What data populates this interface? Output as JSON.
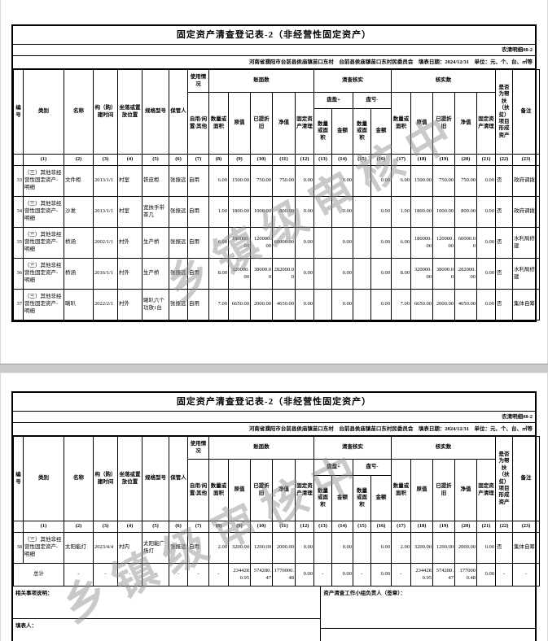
{
  "page": {
    "title": "固定资产清查登记表-2（非经营性固定资产）",
    "form_code": "农清明细08-2",
    "info_line": "河南省濮阳市台前县侯庙镇苗口东村　台前县侯庙镇苗口东村民委员会　填表日期：2024/12/31　单位：元、个、台、㎡等",
    "watermark": "乡镇级审核中"
  },
  "headers": {
    "no": "编号",
    "category": "类别",
    "name": "名称",
    "build_time": "构（购）建时间",
    "location": "坐落或置放位置",
    "model": "规格型号",
    "keeper": "保管人",
    "usage": "使用情况",
    "usage_leaf": "自用/闲置/其他",
    "book": "账面数",
    "check": "清查核实",
    "verify": "核实数",
    "qty": "数量或面积",
    "orig": "原值",
    "depr": "已提折旧",
    "net": "净值",
    "cleanup": "固定资产清理",
    "surplus": "盘盈+",
    "deficit": "盘亏-",
    "amount": "金额",
    "aid": "是否为帮扶（扶贫）项目形成资产",
    "remark": "备注",
    "num_rows": [
      {
        "cls": "nums",
        "cells": [
          "",
          "(1)",
          "(2)",
          "(3)",
          "(4)",
          "(5)",
          "(6)",
          "(7)",
          "(8)",
          "(9)",
          "(10)",
          "(11)",
          "(12)",
          "(13)",
          "(14)",
          "(15)",
          "(16)",
          "(17)",
          "(18)",
          "(19)",
          "(20)",
          "(21)",
          "(22)",
          "(23)"
        ]
      }
    ]
  },
  "table1": {
    "rows": [
      [
        "33",
        "（三）其他非经营性固定资产-明细",
        "文件柜",
        "2013/1/1",
        "村室",
        "铁皮柜",
        "张振远",
        "自用",
        "6.00",
        "1500.00",
        "750.00",
        "750.00",
        "0.00",
        "",
        "0.00",
        "",
        "0.00",
        "6.00",
        "1500.00",
        "750.00",
        "750.00",
        "0.00",
        "否",
        "政府调拨"
      ],
      [
        "34",
        "（三）其他非经营性固定资产-明细",
        "沙发",
        "2013/1/1",
        "村室",
        "宽扶手带茶几",
        "张振远",
        "自用",
        "1.00",
        "1800.00",
        "1000.00",
        "800.00",
        "0.00",
        "",
        "0.00",
        "",
        "0.00",
        "1.00",
        "1800.00",
        "1000.00",
        "800.00",
        "0.00",
        "否",
        "政府调拨"
      ],
      [
        "35",
        "（三）其他非经营性固定资产-明细",
        "桥涵",
        "2002/1/1",
        "村外",
        "生产桥",
        "张振远",
        "自用",
        "6.00",
        "180000.00",
        "120000.00",
        "60000.00",
        "0.00",
        "",
        "0.00",
        "",
        "0.00",
        "6.00",
        "180000.00",
        "120000.00",
        "60000.00",
        "0.00",
        "否",
        "水利局修建"
      ],
      [
        "36",
        "（三）其他非经营性固定资产-明细",
        "桥涵",
        "2016/1/1",
        "村外",
        "生产桥",
        "张振远",
        "自用",
        "8.00",
        "320000.00",
        "38000.00",
        "282000.00",
        "0.00",
        "",
        "0.00",
        "",
        "0.00",
        "8.00",
        "320000.00",
        "38000.00",
        "282000.00",
        "0.00",
        "否",
        "水利局修建"
      ],
      [
        "37",
        "（三）其他非经营性固定资产-明细",
        "喇叭",
        "2022/2/1",
        "村外",
        "喇叭六个功放1台",
        "张振远",
        "自用",
        "7.00",
        "6650.00",
        "2000.00",
        "4650.00",
        "0.00",
        "",
        "0.00",
        "",
        "0.00",
        "7.00",
        "6650.00",
        "2000.00",
        "4650.00",
        "0.00",
        "否",
        "集体自筹"
      ]
    ]
  },
  "table2": {
    "rows": [
      [
        "38",
        "（三）其他非经营性固定资产-明细",
        "太阳能灯",
        "2023/4/4",
        "村内",
        "太阳能广场灯",
        "张振远",
        "自用",
        "2.00",
        "3200.00",
        "1200.00",
        "2000.00",
        "0.00",
        "",
        "0.00",
        "",
        "0.00",
        "2.00",
        "3200.00",
        "1200.00",
        "2000.00",
        "0.00",
        "否",
        "集体自筹"
      ],
      {
        "cls": "total",
        "cells": [
          {
            "t": "总计",
            "cs": 2,
            "al": "c"
          },
          "-",
          "-",
          "-",
          "-",
          "-",
          "-",
          "-",
          "2344280.95",
          "574280.47",
          "1770000.48",
          "0.00",
          "-",
          "0.00",
          "-",
          "0.00",
          "-",
          "2344280.95",
          "574280.47",
          "1770000.48",
          "0.00",
          "-",
          "-"
        ]
      }
    ],
    "footer": {
      "notes": "相关事项说明：",
      "preparer": "填表人：",
      "leader": "资产清查工作小组负责人（签章）："
    }
  }
}
